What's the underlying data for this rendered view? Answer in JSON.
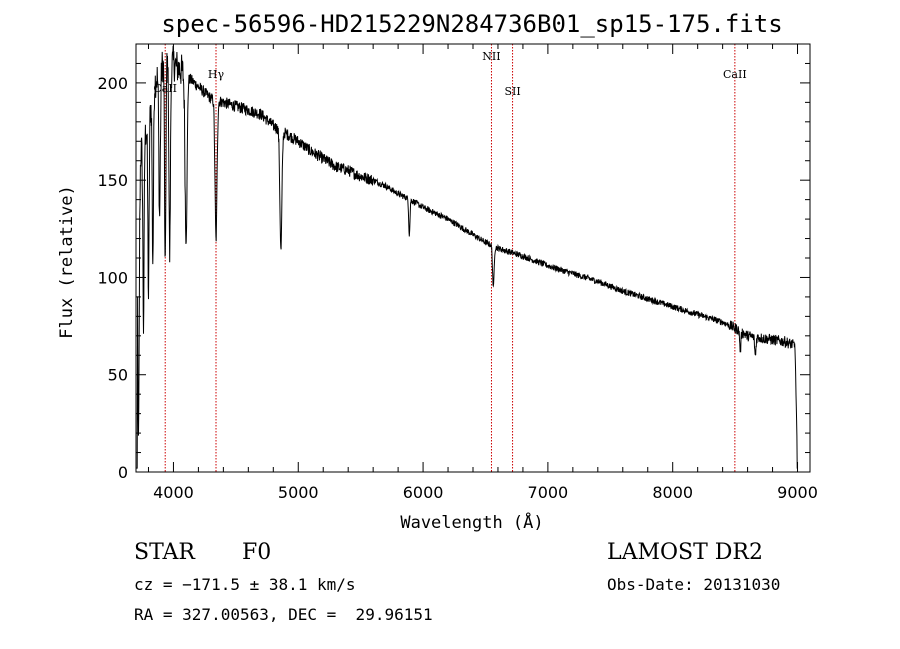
{
  "chart_data": {
    "type": "line",
    "title": "spec-56596-HD215229N284736B01_sp15-175.fits",
    "xlabel": "Wavelength (Å)",
    "ylabel": "Flux (relative)",
    "xlim": [
      3700,
      9100
    ],
    "ylim": [
      0,
      220
    ],
    "xticks": [
      4000,
      5000,
      6000,
      7000,
      8000,
      9000
    ],
    "yticks": [
      0,
      50,
      100,
      150,
      200
    ],
    "grid": false,
    "line_color": "#000000",
    "marker_color": "#cc0000",
    "spectral_lines": [
      {
        "label": "CaII",
        "wavelength": 3934
      },
      {
        "label": "Hγ",
        "wavelength": 4341
      },
      {
        "label": "NII",
        "wavelength": 6548
      },
      {
        "label": "SII",
        "wavelength": 6717
      },
      {
        "label": "CaII",
        "wavelength": 8498
      }
    ],
    "continuum": [
      [
        3700,
        2
      ],
      [
        3710,
        150
      ],
      [
        3740,
        165
      ],
      [
        3800,
        180
      ],
      [
        3850,
        200
      ],
      [
        3900,
        208
      ],
      [
        3950,
        212
      ],
      [
        4000,
        210
      ],
      [
        4100,
        204
      ],
      [
        4200,
        198
      ],
      [
        4300,
        192
      ],
      [
        4400,
        190
      ],
      [
        4500,
        188
      ],
      [
        4600,
        186
      ],
      [
        4700,
        184
      ],
      [
        4800,
        178
      ],
      [
        4900,
        174
      ],
      [
        5000,
        170
      ],
      [
        5100,
        165
      ],
      [
        5200,
        161
      ],
      [
        5300,
        157
      ],
      [
        5400,
        155
      ],
      [
        5500,
        152
      ],
      [
        5600,
        150
      ],
      [
        5700,
        147
      ],
      [
        5800,
        143
      ],
      [
        5900,
        140
      ],
      [
        6000,
        136
      ],
      [
        6100,
        133
      ],
      [
        6200,
        130
      ],
      [
        6300,
        126
      ],
      [
        6400,
        122
      ],
      [
        6500,
        118
      ],
      [
        6600,
        115
      ],
      [
        6700,
        113
      ],
      [
        6800,
        111
      ],
      [
        7000,
        106
      ],
      [
        7200,
        102
      ],
      [
        7400,
        98
      ],
      [
        7600,
        93
      ],
      [
        7800,
        89
      ],
      [
        8000,
        85
      ],
      [
        8200,
        81
      ],
      [
        8400,
        77
      ],
      [
        8500,
        74
      ],
      [
        8600,
        70
      ],
      [
        8700,
        69
      ],
      [
        8800,
        68
      ],
      [
        8900,
        67
      ],
      [
        8980,
        65
      ],
      [
        9000,
        2
      ]
    ],
    "absorption_features": [
      {
        "center": 3720,
        "depth": 140,
        "width": 6
      },
      {
        "center": 3760,
        "depth": 95,
        "width": 5
      },
      {
        "center": 3800,
        "depth": 90,
        "width": 5
      },
      {
        "center": 3835,
        "depth": 85,
        "width": 5
      },
      {
        "center": 3889,
        "depth": 75,
        "width": 6
      },
      {
        "center": 3934,
        "depth": 110,
        "width": 5
      },
      {
        "center": 3970,
        "depth": 100,
        "width": 6
      },
      {
        "center": 4101,
        "depth": 85,
        "width": 8
      },
      {
        "center": 4341,
        "depth": 72,
        "width": 8
      },
      {
        "center": 4861,
        "depth": 62,
        "width": 8
      },
      {
        "center": 5890,
        "depth": 18,
        "width": 5
      },
      {
        "center": 6563,
        "depth": 22,
        "width": 6
      },
      {
        "center": 8542,
        "depth": 10,
        "width": 5
      },
      {
        "center": 8662,
        "depth": 10,
        "width": 5
      }
    ]
  },
  "info": {
    "object_type": "STAR",
    "subclass": "F0",
    "survey": "LAMOST DR2",
    "cz": "cz = −171.5 ± 38.1 km/s",
    "obs_date": "Obs-Date: 20131030",
    "coords": "RA = 327.00563, DEC =  29.96151"
  }
}
